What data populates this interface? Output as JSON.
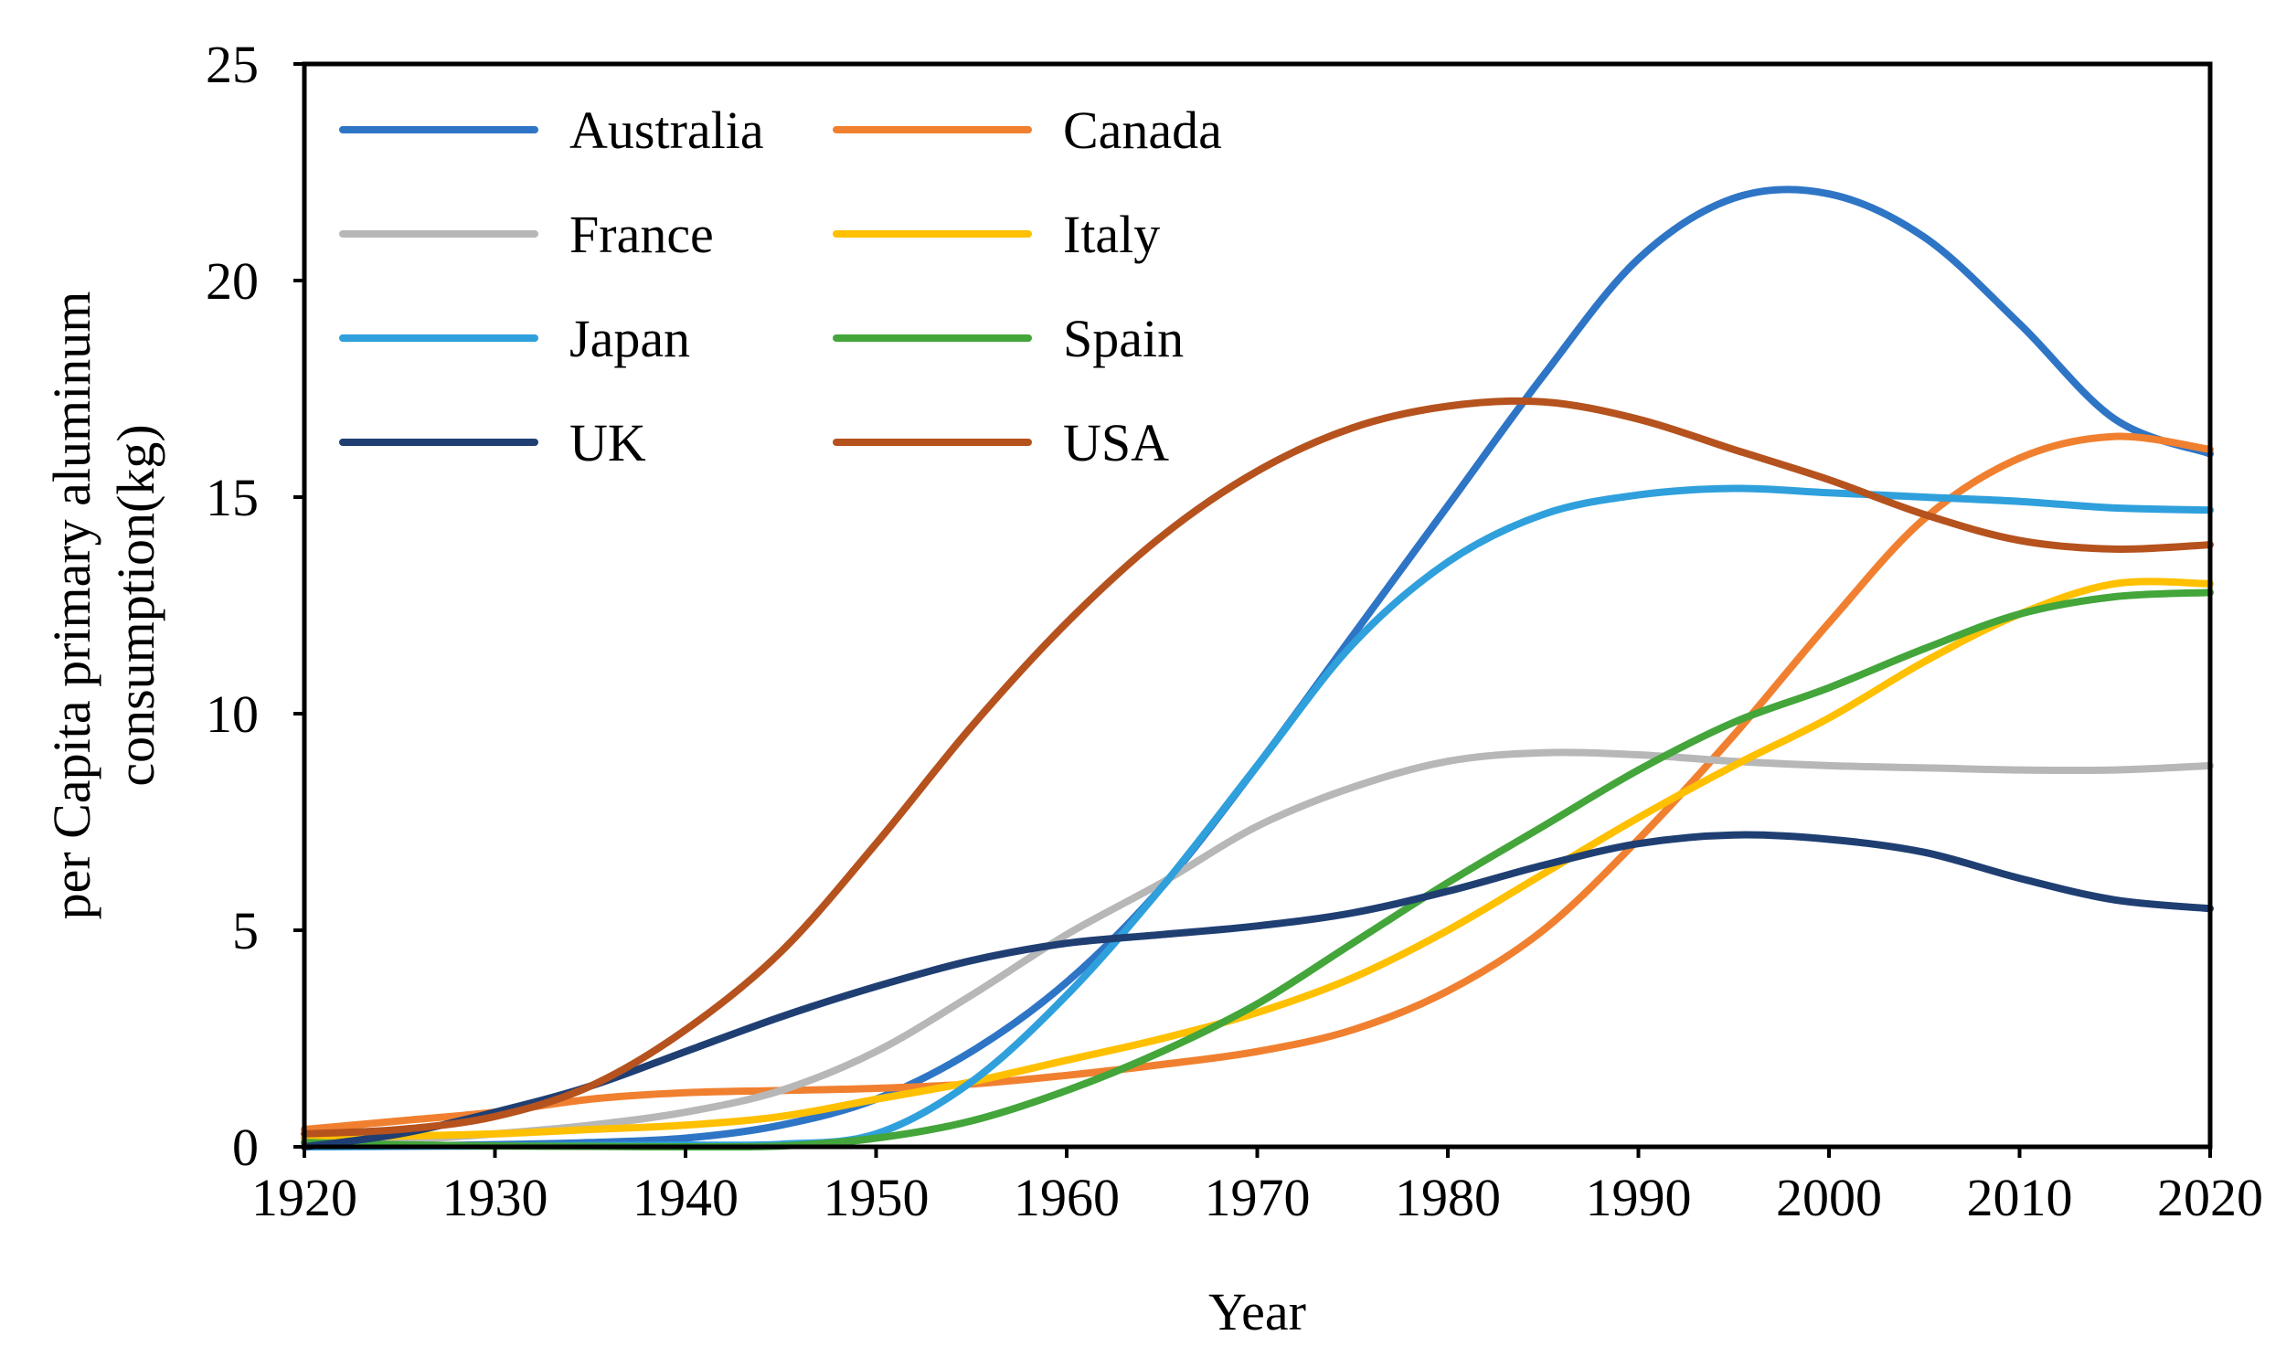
{
  "chart_data": {
    "type": "line",
    "title": "",
    "xlabel": "Year",
    "ylabel_lines": [
      "per Capita primary aluminum",
      "consumption(kg)"
    ],
    "xlim": [
      1920,
      2020
    ],
    "ylim": [
      0,
      25
    ],
    "x_ticks": [
      1920,
      1930,
      1940,
      1950,
      1960,
      1970,
      1980,
      1990,
      2000,
      2010,
      2020
    ],
    "y_ticks": [
      0,
      5,
      10,
      15,
      20,
      25
    ],
    "grid": false,
    "legend_position": "top-left",
    "x": [
      1920,
      1925,
      1930,
      1935,
      1940,
      1945,
      1950,
      1955,
      1960,
      1965,
      1970,
      1975,
      1980,
      1985,
      1990,
      1995,
      2000,
      2005,
      2010,
      2015,
      2020
    ],
    "series": [
      {
        "name": "Australia",
        "color": "#2E75C6",
        "values": [
          0.0,
          0.02,
          0.05,
          0.1,
          0.2,
          0.5,
          1.1,
          2.2,
          3.8,
          6.0,
          8.8,
          11.8,
          14.8,
          17.8,
          20.5,
          21.9,
          22.0,
          21.0,
          19.0,
          16.8,
          16.0
        ]
      },
      {
        "name": "Canada",
        "color": "#F08030",
        "values": [
          0.4,
          0.6,
          0.8,
          1.1,
          1.25,
          1.3,
          1.35,
          1.45,
          1.65,
          1.9,
          2.2,
          2.7,
          3.6,
          5.0,
          7.1,
          9.5,
          12.1,
          14.5,
          15.9,
          16.4,
          16.1
        ]
      },
      {
        "name": "France",
        "color": "#B7B7B7",
        "values": [
          0.1,
          0.15,
          0.3,
          0.5,
          0.8,
          1.3,
          2.2,
          3.5,
          4.9,
          6.1,
          7.4,
          8.3,
          8.9,
          9.1,
          9.05,
          8.9,
          8.8,
          8.75,
          8.7,
          8.7,
          8.8
        ]
      },
      {
        "name": "Italy",
        "color": "#FFC000",
        "values": [
          0.2,
          0.25,
          0.3,
          0.4,
          0.5,
          0.7,
          1.1,
          1.5,
          2.0,
          2.5,
          3.1,
          3.9,
          5.0,
          6.3,
          7.6,
          8.8,
          9.9,
          11.2,
          12.3,
          13.0,
          13.0
        ]
      },
      {
        "name": "Japan",
        "color": "#2FA0DC",
        "values": [
          0.0,
          0.01,
          0.02,
          0.03,
          0.04,
          0.06,
          0.3,
          1.5,
          3.5,
          6.0,
          8.8,
          11.6,
          13.5,
          14.6,
          15.05,
          15.2,
          15.1,
          15.0,
          14.9,
          14.75,
          14.7
        ]
      },
      {
        "name": "Spain",
        "color": "#43A53A",
        "values": [
          0.1,
          0.05,
          0.02,
          0.01,
          0.0,
          0.02,
          0.2,
          0.6,
          1.3,
          2.2,
          3.3,
          4.7,
          6.1,
          7.4,
          8.7,
          9.8,
          10.6,
          11.5,
          12.3,
          12.7,
          12.8
        ]
      },
      {
        "name": "UK",
        "color": "#1F3F73",
        "values": [
          0.0,
          0.3,
          0.8,
          1.4,
          2.2,
          3.0,
          3.7,
          4.3,
          4.7,
          4.9,
          5.1,
          5.4,
          5.9,
          6.5,
          7.0,
          7.2,
          7.1,
          6.8,
          6.2,
          5.7,
          5.5
        ]
      },
      {
        "name": "USA",
        "color": "#B5521E",
        "values": [
          0.3,
          0.4,
          0.7,
          1.4,
          2.7,
          4.5,
          7.0,
          9.7,
          12.1,
          14.1,
          15.6,
          16.6,
          17.1,
          17.2,
          16.8,
          16.1,
          15.4,
          14.6,
          14.0,
          13.8,
          13.9
        ]
      }
    ]
  }
}
